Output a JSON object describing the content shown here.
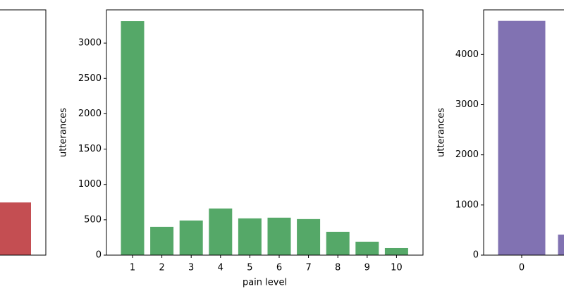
{
  "chart_data": [
    {
      "type": "bar",
      "categories": [
        null
      ],
      "values": [
        745
      ],
      "color": "#c44e52",
      "ylim": [
        0,
        3470
      ]
    },
    {
      "type": "bar",
      "categories": [
        "1",
        "2",
        "3",
        "4",
        "5",
        "6",
        "7",
        "8",
        "9",
        "10"
      ],
      "values": [
        3310,
        400,
        490,
        660,
        520,
        530,
        510,
        330,
        190,
        100
      ],
      "color": "#55a868",
      "ylim": [
        0,
        3470
      ],
      "yticks": [
        0,
        500,
        1000,
        1500,
        2000,
        2500,
        3000
      ],
      "xlabel": "pain level",
      "ylabel": "utterances"
    },
    {
      "type": "bar",
      "categories": [
        "0",
        null
      ],
      "values": [
        4670,
        410
      ],
      "color": "#8172b2",
      "ylim": [
        0,
        4890
      ],
      "yticks": [
        0,
        1000,
        2000,
        3000,
        4000
      ],
      "ylabel": "utterances"
    }
  ]
}
